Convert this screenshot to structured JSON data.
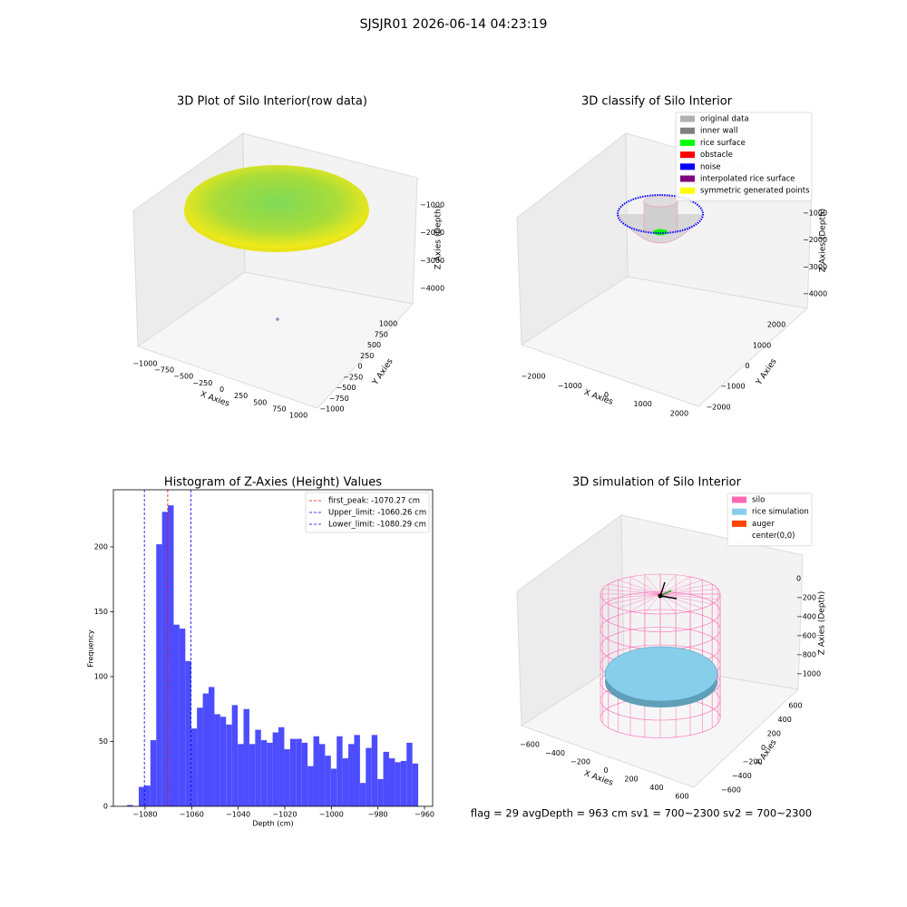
{
  "title": "SJSJR01 2026-06-14 04:23:19",
  "status": "flag = 29  avgDepth = 963 cm  sv1 = 700~2300  sv2 = 700~2300",
  "chart_data": [
    {
      "type": "scatter3d",
      "title": "3D Plot of Silo Interior(row data)",
      "xlabel": "X Axies",
      "ylabel": "Y Axies",
      "zlabel": "Z Axies (Depth)",
      "xlim": [
        -1100,
        1100
      ],
      "ylim": [
        -1100,
        1100
      ],
      "zlim": [
        -4300,
        -700
      ],
      "xticks": [
        {
          "value": -1000,
          "label": "−1000"
        },
        {
          "value": -750,
          "label": "−750"
        },
        {
          "value": -500,
          "label": "−500"
        },
        {
          "value": -250,
          "label": "−250"
        },
        0,
        250,
        500,
        750,
        1000
      ],
      "yticks": [
        {
          "value": -1000,
          "label": "−1000"
        },
        {
          "value": -750,
          "label": "−750"
        },
        {
          "value": -500,
          "label": "−500"
        },
        {
          "value": -250,
          "label": "−250"
        },
        0,
        250,
        500,
        750,
        1000
      ],
      "zticks": [
        {
          "value": -1000,
          "label": "−1000"
        },
        {
          "value": -2000,
          "label": "−2000"
        },
        {
          "value": -3000,
          "label": "−3000"
        },
        {
          "value": -4000,
          "label": "−4000"
        }
      ]
    },
    {
      "type": "classify3d",
      "title": "3D classify of Silo Interior",
      "xlabel": "X Axies",
      "ylabel": "Y Axies",
      "zlabel": "Z Axies (Depth)",
      "xlim": [
        -2300,
        2300
      ],
      "ylim": [
        -2300,
        2300
      ],
      "zlim": [
        -4400,
        -600
      ],
      "xticks": [
        {
          "value": -2000,
          "label": "−2000"
        },
        {
          "value": -1000,
          "label": "−1000"
        },
        0,
        1000,
        2000
      ],
      "yticks": [
        {
          "value": -2000,
          "label": "−2000"
        },
        {
          "value": -1000,
          "label": "−1000"
        },
        0,
        1000,
        2000
      ],
      "zticks": [
        {
          "value": -1000,
          "label": "−1000"
        },
        {
          "value": -2000,
          "label": "−2000"
        },
        {
          "value": -3000,
          "label": "−3000"
        },
        {
          "value": -4000,
          "label": "−4000"
        }
      ],
      "legend": "upper right",
      "legend_items": [
        {
          "name": "original data",
          "color": "#b0b0b0"
        },
        {
          "name": "inner wall",
          "color": "#808080"
        },
        {
          "name": "rice surface",
          "color": "#00ff00"
        },
        {
          "name": "obstacle",
          "color": "#ff0000"
        },
        {
          "name": "noise",
          "color": "#0000ff"
        },
        {
          "name": "interpolated rice surface",
          "color": "#800080"
        },
        {
          "name": "symmetric generated points",
          "color": "#ffff00"
        }
      ]
    },
    {
      "type": "histogram",
      "title": "Histogram of Z-Axies (Height) Values",
      "xlabel": "Depth (cm)",
      "ylabel": "Frequency",
      "color": "#4d4dff",
      "bins": [
        -1087.7,
        -1085.2,
        -1082.7,
        -1080.2,
        -1077.7,
        -1075.2,
        -1072.7,
        -1070.2,
        -1067.7,
        -1065.2,
        -1062.7,
        -1060.2,
        -1057.7,
        -1055.2,
        -1052.7,
        -1050.2,
        -1047.7,
        -1045.2,
        -1042.7,
        -1040.2,
        -1037.7,
        -1035.2,
        -1032.7,
        -1030.2,
        -1027.7,
        -1025.2,
        -1022.7,
        -1020.2,
        -1017.7,
        -1015.2,
        -1012.7,
        -1010.2,
        -1007.7,
        -1005.2,
        -1002.7,
        -1000.2,
        -997.7,
        -995.2,
        -992.7,
        -990.2,
        -987.7,
        -985.2,
        -982.7,
        -980.2,
        -977.7,
        -975.2,
        -972.7,
        -970.2,
        -967.7,
        -965.2,
        -962.7
      ],
      "values": [
        1,
        0,
        15,
        16,
        51,
        202,
        227,
        232,
        140,
        137,
        112,
        60,
        76,
        87,
        92,
        71,
        69,
        63,
        78,
        48,
        75,
        48,
        59,
        51,
        49,
        57,
        61,
        44,
        52,
        52,
        49,
        31,
        54,
        48,
        39,
        29,
        54,
        37,
        48,
        55,
        18,
        45,
        55,
        21,
        42,
        37,
        34,
        35,
        49,
        33
      ],
      "xlim": [
        -1093.6,
        -956.5
      ],
      "ylim": [
        0,
        244
      ],
      "xticks": [
        {
          "value": -1080,
          "label": "−1080"
        },
        {
          "value": -1060,
          "label": "−1060"
        },
        {
          "value": -1040,
          "label": "−1040"
        },
        {
          "value": -1020,
          "label": "−1020"
        },
        {
          "value": -1000,
          "label": "−1000"
        },
        {
          "value": -980,
          "label": "−980"
        },
        {
          "value": -960,
          "label": "−960"
        }
      ],
      "yticks": [
        0,
        50,
        100,
        150,
        200
      ],
      "legend": "upper right",
      "lines": [
        {
          "name": "first_peak: -1070.27 cm",
          "value": -1070.27,
          "color": "#ff0000"
        },
        {
          "name": "Upper_limit: -1060.26 cm",
          "value": -1060.26,
          "color": "#0000ff"
        },
        {
          "name": "Lower_limit: -1080.29 cm",
          "value": -1080.29,
          "color": "#0000ff"
        }
      ]
    },
    {
      "type": "simulation3d",
      "title": "3D simulation of Silo Interior",
      "xlabel": "X Axies",
      "ylabel": "Y Axies",
      "zlabel": "Z Axies (Depth)",
      "xlim": [
        -700,
        700
      ],
      "ylim": [
        -700,
        700
      ],
      "zlim": [
        -1100,
        100
      ],
      "xticks": [
        {
          "value": -600,
          "label": "−600"
        },
        {
          "value": -400,
          "label": "−400"
        },
        {
          "value": -200,
          "label": "−200"
        },
        0,
        200,
        400,
        600
      ],
      "yticks": [
        {
          "value": -600,
          "label": "−600"
        },
        {
          "value": -400,
          "label": "−400"
        },
        {
          "value": -200,
          "label": "−200"
        },
        0,
        200,
        400,
        600
      ],
      "zticks": [
        0,
        {
          "value": -200,
          "label": "−200"
        },
        {
          "value": -400,
          "label": "−400"
        },
        {
          "value": -600,
          "label": "−600"
        },
        {
          "value": -800,
          "label": "−800"
        },
        {
          "value": -1000,
          "label": "−1000"
        }
      ],
      "legend": "upper right",
      "legend_items": [
        {
          "name": "silo",
          "color": "#ff69b4"
        },
        {
          "name": "rice simulation",
          "color": "#87ceeb"
        },
        {
          "name": "auger",
          "color": "#ff4500"
        },
        {
          "name": "center(0,0)",
          "color": "#ffffff"
        }
      ]
    }
  ]
}
